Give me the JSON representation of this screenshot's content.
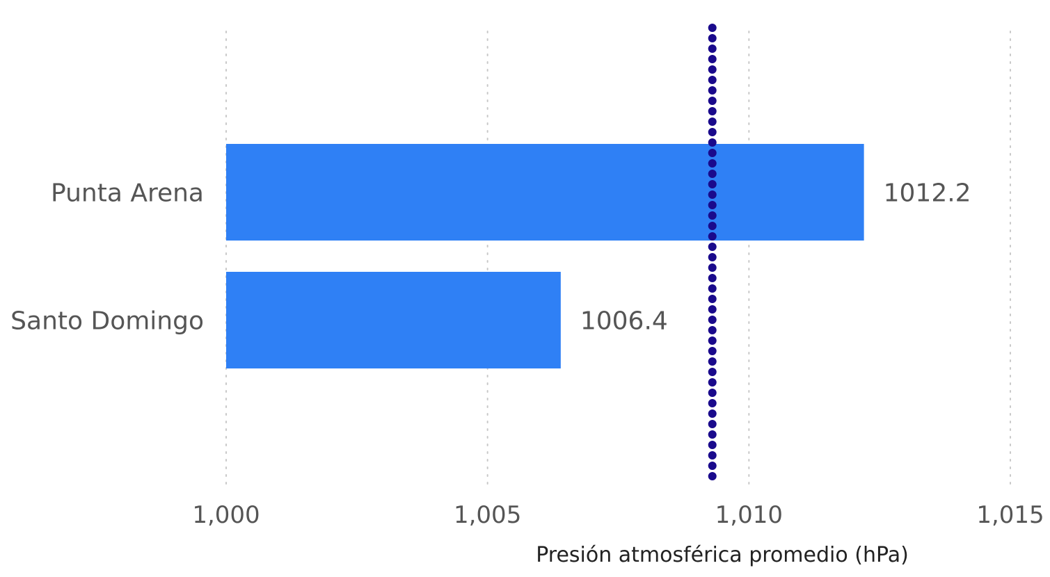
{
  "chart_data": {
    "type": "bar",
    "orientation": "horizontal",
    "categories": [
      "Punta Arena",
      "Santo Domingo"
    ],
    "values": [
      1012.2,
      1006.4
    ],
    "value_labels": [
      "1012.2",
      "1006.4"
    ],
    "xlabel": "Presión atmosférica promedio (hPa)",
    "ylabel": "",
    "xlim": [
      1000,
      1015
    ],
    "x_ticks": [
      1000,
      1005,
      1010,
      1015
    ],
    "x_tick_labels": [
      "1,000",
      "1,005",
      "1,010",
      "1,015"
    ],
    "grid": "vertical dotted",
    "bar_color": "#2f80f5",
    "reference_line": {
      "value": 1009.3,
      "style": "dotted",
      "color": "#1a0a8c"
    }
  }
}
